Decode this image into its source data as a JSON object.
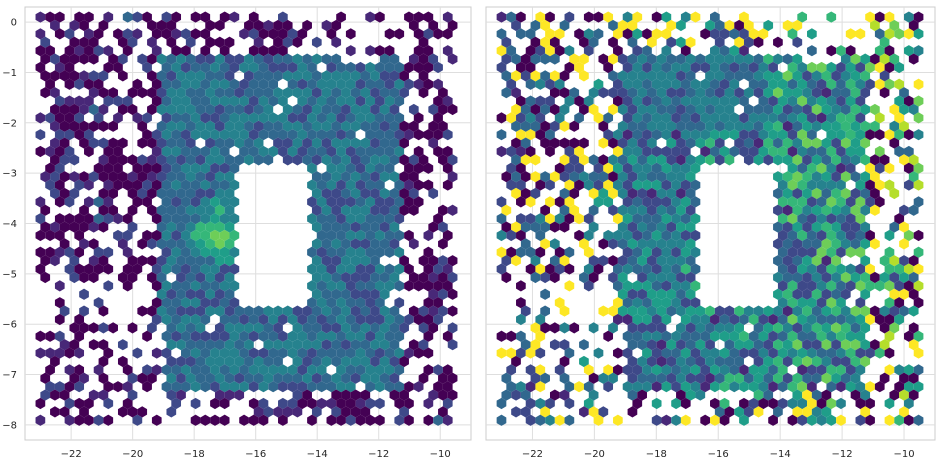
{
  "chart_data": [
    {
      "type": "heatmap",
      "subtype": "hexbin",
      "title": "",
      "xlabel": "",
      "ylabel": "",
      "xlim": [
        -23.5,
        -9.0
      ],
      "ylim": [
        -8.3,
        0.3
      ],
      "xticks": [
        -22,
        -20,
        -18,
        -16,
        -14,
        -12,
        -10
      ],
      "yticks": [
        0,
        -1,
        -2,
        -3,
        -4,
        -5,
        -6,
        -7,
        -8
      ],
      "xtick_labels": [
        "−22",
        "−20",
        "−18",
        "−16",
        "−14",
        "−12",
        "−10"
      ],
      "ytick_labels": [
        "0",
        "−1",
        "−2",
        "−3",
        "−4",
        "−5",
        "−6",
        "−7",
        "−8"
      ],
      "grid": true,
      "colormap": "viridis",
      "value_range": [
        0,
        1
      ],
      "region": {
        "outer_box": {
          "x": [
            -23,
            -9.5
          ],
          "y": [
            -8.0,
            0.1
          ]
        },
        "inner_hole": {
          "x": [
            -16.6,
            -14.2
          ],
          "y": [
            -5.6,
            -2.9
          ]
        },
        "hot_spot": {
          "x": -17.2,
          "y": -4.2
        }
      }
    },
    {
      "type": "heatmap",
      "subtype": "hexbin",
      "title": "",
      "xlabel": "",
      "ylabel": "",
      "xlim": [
        -23.5,
        -9.0
      ],
      "ylim": [
        -8.3,
        0.3
      ],
      "xticks": [
        -22,
        -20,
        -18,
        -16,
        -14,
        -12,
        -10
      ],
      "yticks": [
        0,
        -1,
        -2,
        -3,
        -4,
        -5,
        -6,
        -7,
        -8
      ],
      "xtick_labels": [
        "−22",
        "−20",
        "−18",
        "−16",
        "−14",
        "−12",
        "−10"
      ],
      "ytick_labels": [],
      "grid": true,
      "colormap": "viridis",
      "value_range": [
        0,
        1
      ],
      "region": {
        "outer_box": {
          "x": [
            -23,
            -9.5
          ],
          "y": [
            -8.0,
            0.1
          ]
        },
        "inner_hole": {
          "x": [
            -16.6,
            -14.2
          ],
          "y": [
            -5.6,
            -2.9
          ]
        }
      }
    }
  ],
  "colors": {
    "viridis": [
      "#440154",
      "#482878",
      "#3e4989",
      "#31688e",
      "#26828e",
      "#1f9e89",
      "#35b779",
      "#6ece58",
      "#b5de2b",
      "#fde725"
    ],
    "grid": "#dedede",
    "axes_edge": "#cccccc",
    "tick_text": "#262626"
  }
}
